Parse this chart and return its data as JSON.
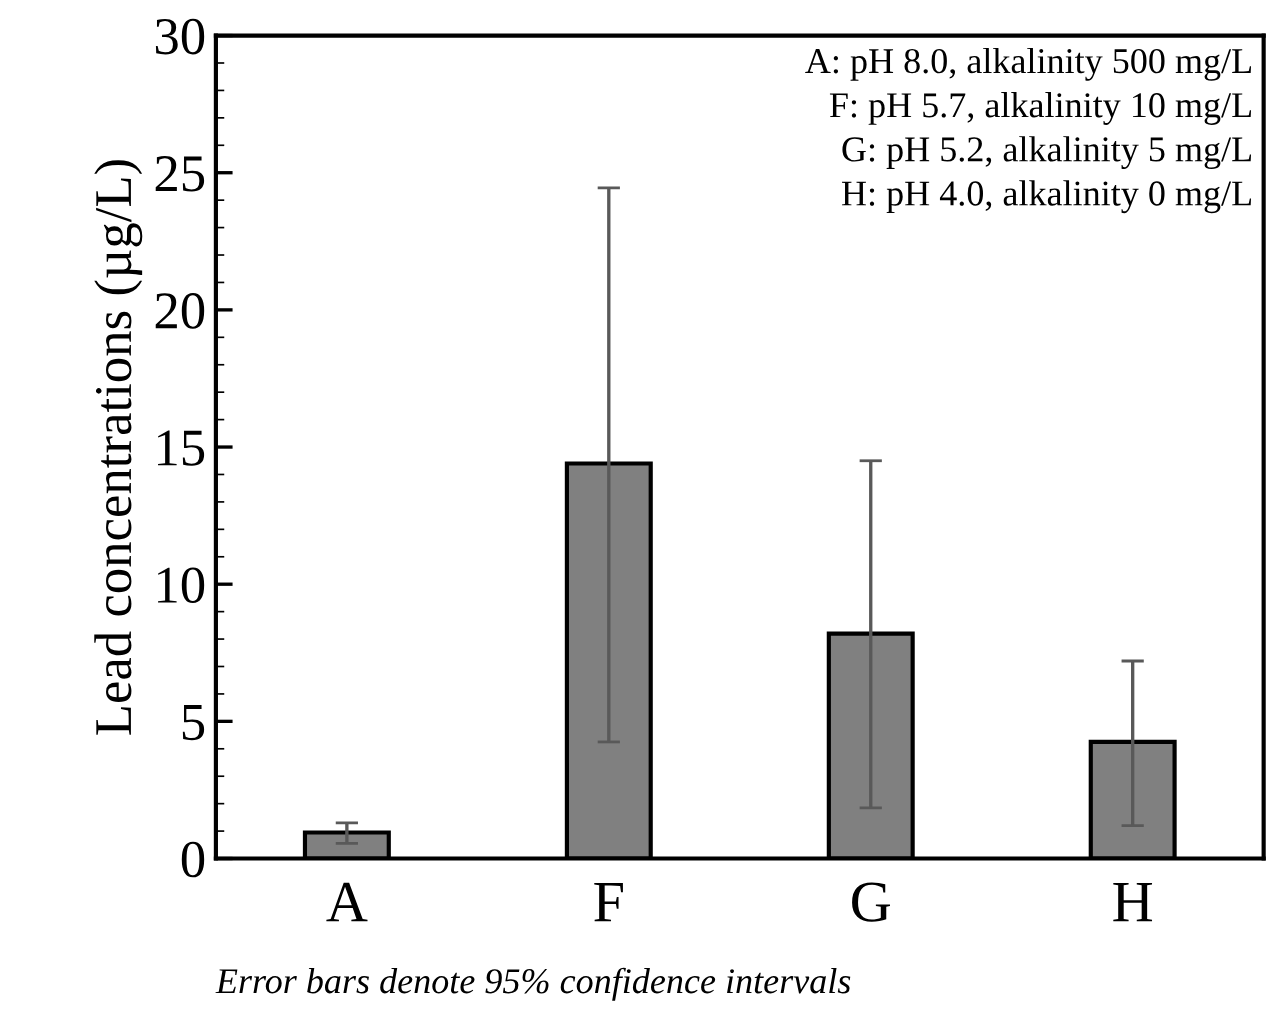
{
  "chart_data": {
    "type": "bar",
    "ylabel": "Lead concentrations (µg/L)",
    "categories": [
      "A",
      "F",
      "G",
      "H"
    ],
    "values": [
      0.95,
      14.4,
      8.2,
      4.25
    ],
    "errors": [
      [
        0.55,
        1.3
      ],
      [
        4.25,
        24.45
      ],
      [
        1.85,
        14.5
      ],
      [
        1.2,
        7.2
      ]
    ],
    "color": "#808080",
    "ylim": [
      0,
      30
    ],
    "yticks": [
      0,
      5,
      10,
      15,
      20,
      25,
      30
    ],
    "grid": false,
    "legend": false,
    "annotations": [
      "A: pH 8.0, alkalinity 500 mg/L\nF: pH 5.7, alkalinity 10 mg/L\nG: pH 5.2, alkalinity 5 mg/L\nH: pH 4.0, alkalinity 0 mg/L",
      "Error bars denote 95% confidence intervals"
    ]
  }
}
